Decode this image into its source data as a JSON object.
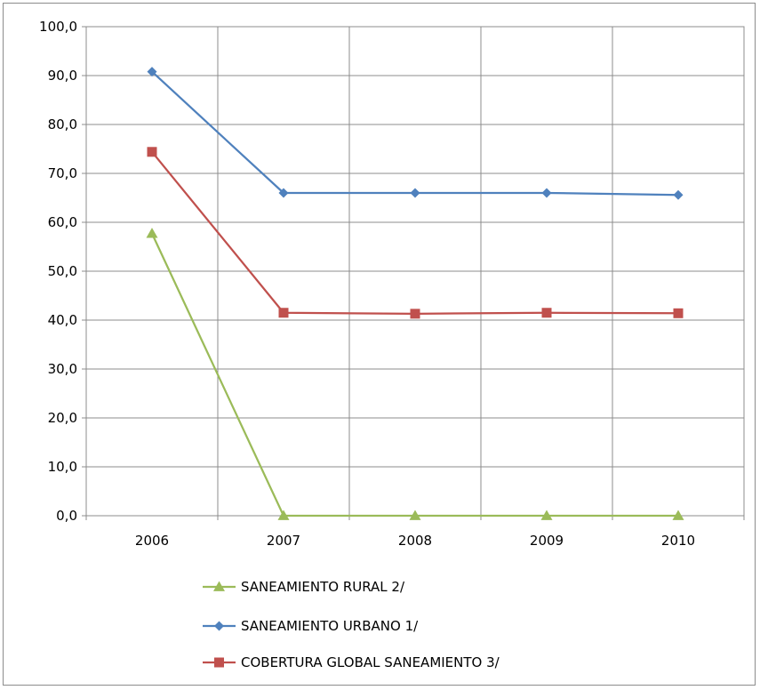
{
  "chart_data": {
    "type": "line",
    "categories": [
      "2006",
      "2007",
      "2008",
      "2009",
      "2010"
    ],
    "ylim": [
      0,
      100
    ],
    "yticks": [
      "0,0",
      "10,0",
      "20,0",
      "30,0",
      "40,0",
      "50,0",
      "60,0",
      "70,0",
      "80,0",
      "90,0",
      "100,0"
    ],
    "grid": true,
    "legend_position": "bottom",
    "series": [
      {
        "name": "SANEAMIENTO RURAL 2/",
        "color": "#9bbb59",
        "marker": "triangle",
        "values": [
          57.7,
          0.0,
          0.0,
          0.0,
          0.0
        ]
      },
      {
        "name": "SANEAMIENTO URBANO 1/",
        "color": "#4f81bd",
        "marker": "diamond",
        "values": [
          90.8,
          66.0,
          66.0,
          66.0,
          65.6
        ]
      },
      {
        "name": "COBERTURA GLOBAL SANEAMIENTO 3/",
        "color": "#c0504d",
        "marker": "square",
        "values": [
          74.4,
          41.5,
          41.3,
          41.5,
          41.4
        ]
      }
    ]
  }
}
